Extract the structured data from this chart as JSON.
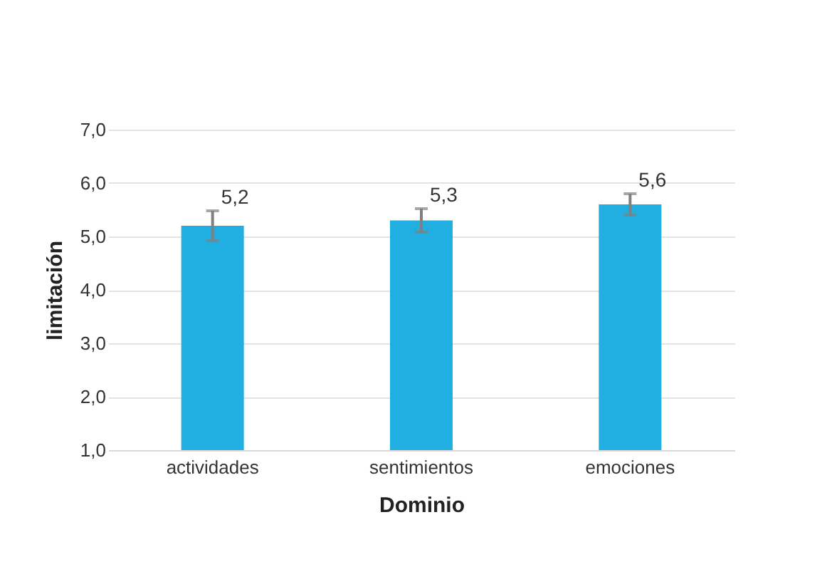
{
  "chart_data": {
    "type": "bar",
    "xlabel": "Dominio",
    "ylabel": "limitación",
    "categories": [
      "actividades",
      "sentimientos",
      "emociones"
    ],
    "values": [
      5.2,
      5.3,
      5.6
    ],
    "value_labels": [
      "5,2",
      "5,3",
      "5,6"
    ],
    "errors": [
      0.28,
      0.22,
      0.2
    ],
    "color": "#21aee0",
    "ylim": [
      1,
      7
    ],
    "yticks": [
      {
        "value": 1,
        "label": "1,0"
      },
      {
        "value": 2,
        "label": "2,0"
      },
      {
        "value": 3,
        "label": "3,0"
      },
      {
        "value": 4,
        "label": "4,0"
      },
      {
        "value": 5,
        "label": "5,0"
      },
      {
        "value": 6,
        "label": "6,0"
      },
      {
        "value": 7,
        "label": "7,0"
      }
    ],
    "grid": "y"
  }
}
